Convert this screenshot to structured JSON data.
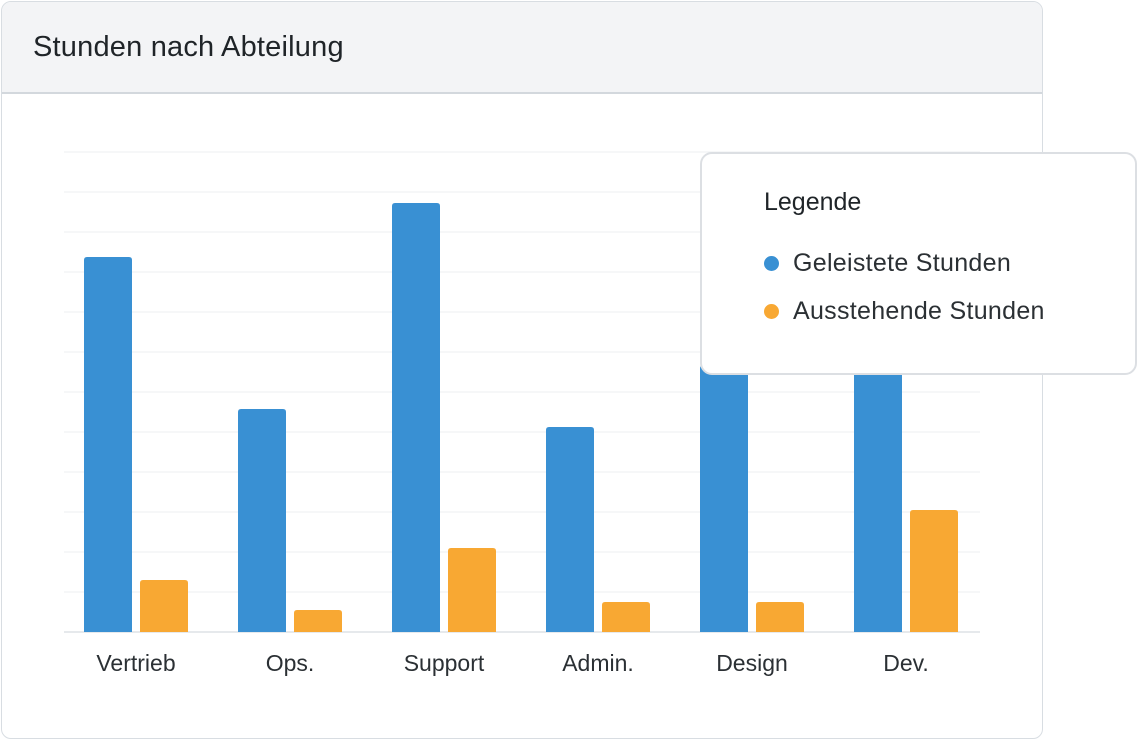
{
  "card": {
    "title": "Stunden nach Abteilung"
  },
  "legend": {
    "title": "Legende"
  },
  "colors": {
    "geleistet": "#3990d3",
    "ausstehend": "#f8a833",
    "grid": "#eceff1"
  },
  "chart_data": {
    "type": "bar",
    "title": "Stunden nach Abteilung",
    "categories": [
      "Vertrieb",
      "Ops.",
      "Support",
      "Admin.",
      "Design",
      "Dev."
    ],
    "series": [
      {
        "name": "Geleistete Stunden",
        "color": "#3990d3",
        "values": [
          375,
          223,
          429,
          205,
          267,
          264
        ]
      },
      {
        "name": "Ausstehende Stunden",
        "color": "#f8a833",
        "values": [
          52,
          22,
          84,
          30,
          30,
          122
        ]
      }
    ],
    "ylim": [
      0,
      480
    ],
    "grid_step": 40,
    "grid": true,
    "y_tick_labels_shown": false,
    "legend_position": "top-right"
  }
}
